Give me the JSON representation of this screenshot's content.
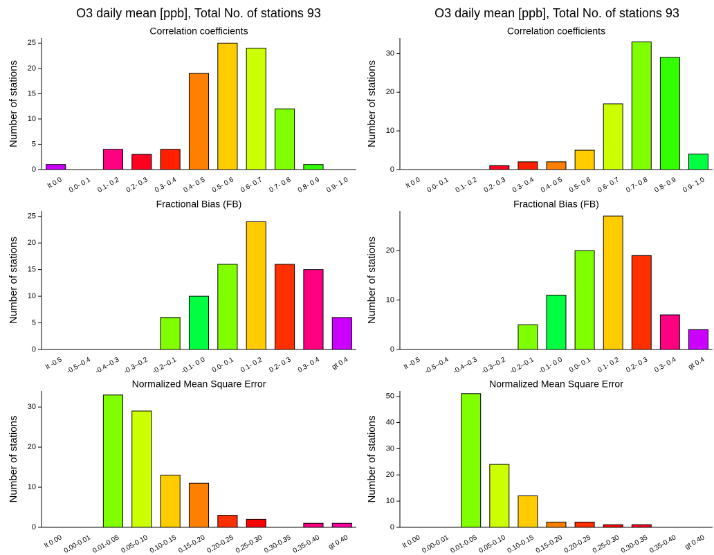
{
  "headers": [
    "O3 daily mean [ppb], Total No. of stations  93",
    "O3 daily mean [ppb], Total No. of stations  93"
  ],
  "chart_data": [
    {
      "type": "bar",
      "title": "Correlation coefficients",
      "y_label": "Number of stations",
      "categories": [
        "lt 0.0",
        "0.0- 0.1",
        "0.1- 0.2",
        "0.2- 0.3",
        "0.3- 0.4",
        "0.4- 0.5",
        "0.5- 0.6",
        "0.6- 0.7",
        "0.7- 0.8",
        "0.8- 0.9",
        "0.9- 1.0"
      ],
      "values": [
        1,
        0,
        4,
        3,
        4,
        19,
        25,
        24,
        12,
        1,
        0
      ],
      "colors": [
        "#cc00ff",
        null,
        "#ff0080",
        "#ff0020",
        "#ff2000",
        "#ff8000",
        "#ffcc00",
        "#ccff00",
        "#80ff00",
        "#33ff00",
        null
      ],
      "ylim": [
        0,
        26
      ],
      "yticks": [
        0,
        5,
        10,
        15,
        20,
        25
      ]
    },
    {
      "type": "bar",
      "title": "Correlation coefficients",
      "y_label": "Number of stations",
      "categories": [
        "lt 0.0",
        "0.0- 0.1",
        "0.1- 0.2",
        "0.2- 0.3",
        "0.3- 0.4",
        "0.4- 0.5",
        "0.5- 0.6",
        "0.6- 0.7",
        "0.7- 0.8",
        "0.8- 0.9",
        "0.9- 1.0"
      ],
      "values": [
        0,
        0,
        0,
        1,
        2,
        2,
        5,
        17,
        33,
        29,
        4
      ],
      "colors": [
        null,
        null,
        null,
        "#ff0020",
        "#ff2000",
        "#ff8000",
        "#ffcc00",
        "#ccff00",
        "#80ff00",
        "#33ff00",
        "#00ff40"
      ],
      "ylim": [
        0,
        34
      ],
      "yticks": [
        0,
        10,
        20,
        30
      ]
    },
    {
      "type": "bar",
      "title": "Fractional Bias (FB)",
      "y_label": "Number of stations",
      "categories": [
        "lt -0.5",
        "-0.5--0.4",
        "-0.4--0.3",
        "-0.3--0.2",
        "-0.2--0.1",
        "-0.1- 0.0",
        "0.0- 0.1",
        "0.1- 0.2",
        "0.2- 0.3",
        "0.3- 0.4",
        "gt 0.4"
      ],
      "values": [
        0,
        0,
        0,
        0,
        6,
        10,
        16,
        24,
        16,
        15,
        6
      ],
      "colors": [
        null,
        null,
        null,
        null,
        "#80ff00",
        "#00ff40",
        "#80ff00",
        "#ffcc00",
        "#ff3000",
        "#ff0080",
        "#cc00ff"
      ],
      "ylim": [
        0,
        26
      ],
      "yticks": [
        0,
        5,
        10,
        15,
        20,
        25
      ]
    },
    {
      "type": "bar",
      "title": "Fractional Bias (FB)",
      "y_label": "Number of stations",
      "categories": [
        "lt -0.5",
        "-0.5--0.4",
        "-0.4--0.3",
        "-0.3--0.2",
        "-0.2--0.1",
        "-0.1- 0.0",
        "0.0- 0.1",
        "0.1- 0.2",
        "0.2- 0.3",
        "0.3- 0.4",
        "gt 0.4"
      ],
      "values": [
        0,
        0,
        0,
        0,
        5,
        11,
        20,
        27,
        19,
        7,
        4
      ],
      "colors": [
        null,
        null,
        null,
        null,
        "#80ff00",
        "#00ff40",
        "#80ff00",
        "#ffcc00",
        "#ff3000",
        "#ff0080",
        "#cc00ff"
      ],
      "ylim": [
        0,
        28
      ],
      "yticks": [
        0,
        10,
        20
      ]
    },
    {
      "type": "bar",
      "title": "Normalized Mean Square Error",
      "y_label": "Number of stations",
      "categories": [
        "lt 0.00",
        "0.00-0.01",
        "0.01-0.05",
        "0.05-0.10",
        "0.10-0.15",
        "0.15-0.20",
        "0.20-0.25",
        "0.25-0.30",
        "0.30-0.35",
        "0.35-0.40",
        "gt 0.40"
      ],
      "values": [
        0,
        0,
        33,
        29,
        13,
        11,
        3,
        2,
        0,
        1,
        1
      ],
      "colors": [
        null,
        null,
        "#80ff00",
        "#ccff00",
        "#ffcc00",
        "#ff8000",
        "#ff3000",
        "#ff0000",
        null,
        "#ff0080",
        "#ff00a0"
      ],
      "ylim": [
        0,
        34
      ],
      "yticks": [
        0,
        10,
        20,
        30
      ]
    },
    {
      "type": "bar",
      "title": "Normalized Mean Square Error",
      "y_label": "Number of stations",
      "categories": [
        "lt 0.00",
        "0.00-0.01",
        "0.01-0.05",
        "0.05-0.10",
        "0.10-0.15",
        "0.15-0.20",
        "0.20-0.25",
        "0.25-0.30",
        "0.30-0.35",
        "0.35-0.40",
        "gt 0.40"
      ],
      "values": [
        0,
        0,
        51,
        24,
        12,
        2,
        2,
        1,
        1,
        0,
        0
      ],
      "colors": [
        null,
        null,
        "#80ff00",
        "#ccff00",
        "#ffcc00",
        "#ff8000",
        "#ff3000",
        "#ff0000",
        "#ff0020",
        null,
        null
      ],
      "ylim": [
        0,
        52
      ],
      "yticks": [
        0,
        10,
        20,
        30,
        40,
        50
      ]
    }
  ]
}
